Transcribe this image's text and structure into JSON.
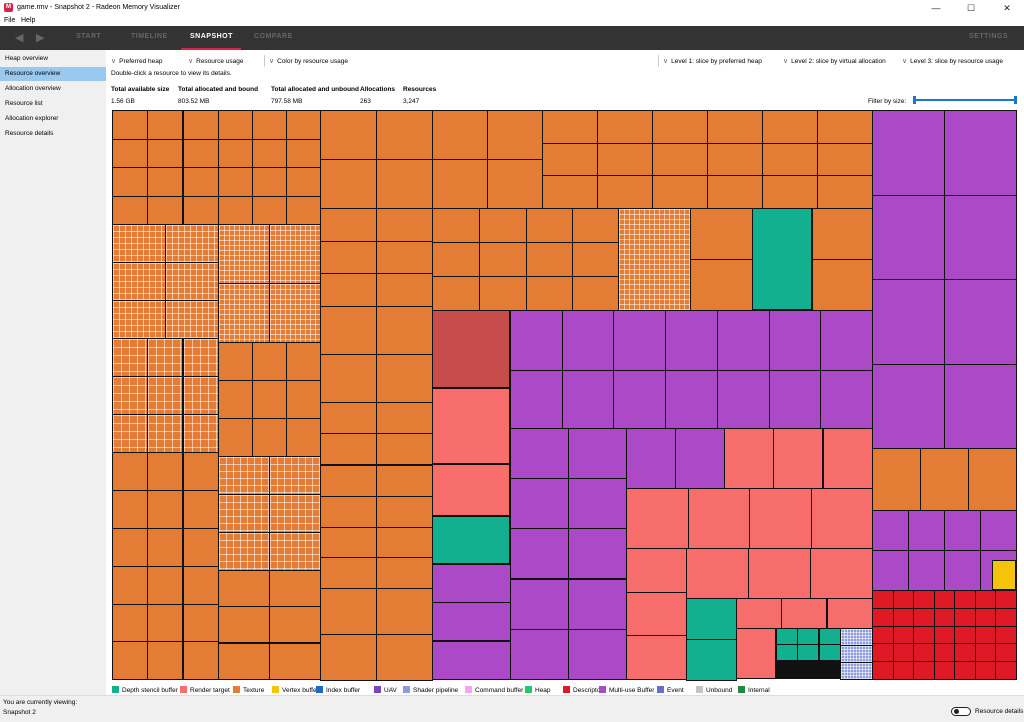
{
  "window": {
    "title": "game.rmv - Snapshot 2 - Radeon Memory Visualizer",
    "minimize": "—",
    "maximize": "☐",
    "close": "✕",
    "app_icon": "M"
  },
  "menu": [
    "File",
    "Help"
  ],
  "nav": {
    "back": "◀",
    "forward": "▶",
    "tabs": [
      "START",
      "TIMELINE",
      "SNAPSHOT",
      "COMPARE"
    ],
    "active_tab": "SNAPSHOT",
    "settings": "SETTINGS"
  },
  "sidebar": {
    "items": [
      "Heap overview",
      "Resource overview",
      "Allocation overview",
      "Resource list",
      "Allocation explorer",
      "Resource details"
    ],
    "active": "Resource overview"
  },
  "controls": {
    "preferred_heap": "Preferred heap",
    "resource_usage": "Resource usage",
    "color_by": "Color by resource usage",
    "level1": "Level 1: slice by preferred heap",
    "level2": "Level 2: slice by virtual allocation",
    "level3": "Level 3: slice by resource usage"
  },
  "hint": "Double-click a resource to view its details.",
  "stats": {
    "headers": [
      "Total available size",
      "Total allocated and bound",
      "Total allocated and unbound",
      "Allocations",
      "Resources"
    ],
    "values": [
      "1.56 GB",
      "803.52 MB",
      "797.58 MB",
      "263",
      "3,247"
    ]
  },
  "filter": {
    "label": "Filter by size:",
    "min_fraction": 0,
    "max_fraction": 1
  },
  "colors": {
    "depth": "#12b08e",
    "rt": "#f76d6b",
    "texture": "#e37d35",
    "vertex": "#f5c30a",
    "index": "#2266c8",
    "uav": "#7b47b8",
    "shader": "#8e9cdb",
    "command": "#f5a4ef",
    "heap": "#22c76e",
    "descriptors": "#e01926",
    "multiuse": "#ac49c6",
    "event": "#6b6bd6",
    "unbound": "#c4c4c4",
    "internal": "#1f8a3c",
    "rt_dark": "#c94c4c"
  },
  "legend": [
    {
      "label": "Depth stencil buffer",
      "color": "#12b08e"
    },
    {
      "label": "Render target",
      "color": "#f76d6b"
    },
    {
      "label": "Texture",
      "color": "#e37d35"
    },
    {
      "label": "Vertex buffer",
      "color": "#f5c30a"
    },
    {
      "label": "Index buffer",
      "color": "#2266c8"
    },
    {
      "label": "UAV",
      "color": "#7b47b8"
    },
    {
      "label": "Shader pipeline",
      "color": "#8e9cdb"
    },
    {
      "label": "Command buffer",
      "color": "#f5a4ef"
    },
    {
      "label": "Heap",
      "color": "#22c76e"
    },
    {
      "label": "Descriptors",
      "color": "#e01926"
    },
    {
      "label": "Multi-use Buffer",
      "color": "#ac49c6"
    },
    {
      "label": "Event",
      "color": "#6b6bd6"
    },
    {
      "label": "Unbound",
      "color": "#c4c4c4"
    },
    {
      "label": "Internal",
      "color": "#1f8a3c"
    }
  ],
  "status": {
    "viewing_label": "You are currently viewing:",
    "snapshot": "Snapshot 2",
    "toggle_label": "Resource details"
  }
}
